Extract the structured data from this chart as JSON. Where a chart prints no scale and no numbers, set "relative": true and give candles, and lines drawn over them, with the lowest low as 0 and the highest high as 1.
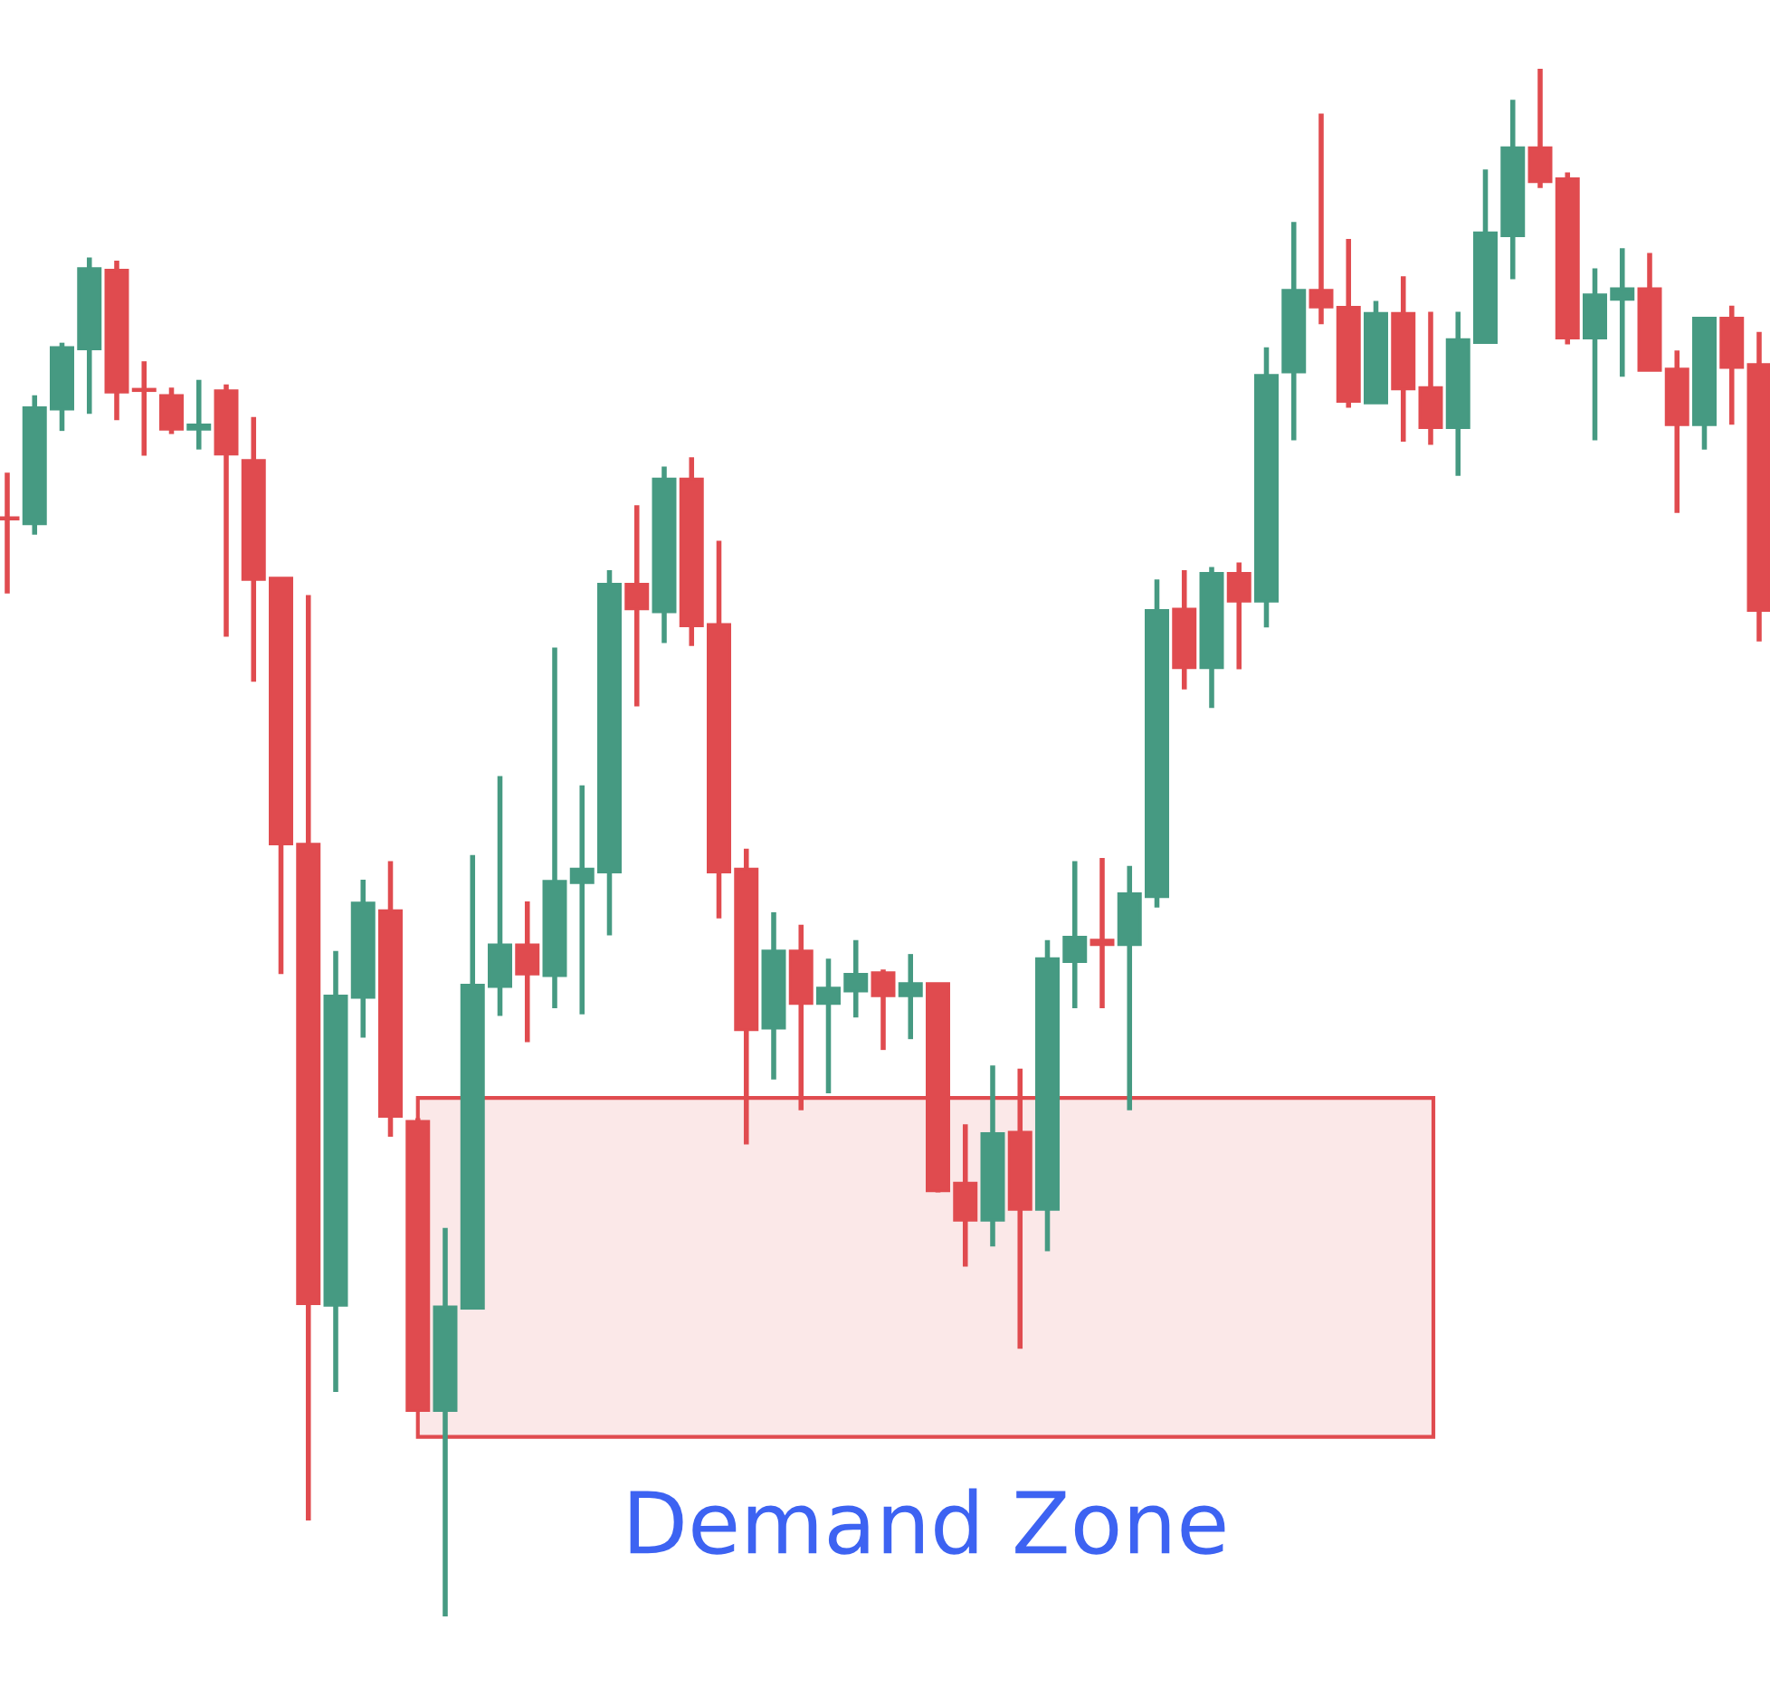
{
  "chart_data": {
    "type": "candlestick",
    "relative": true,
    "categories": [
      null,
      null,
      null,
      null,
      null,
      null,
      null,
      null,
      null,
      null,
      null,
      null,
      null,
      null,
      null,
      null,
      null,
      null,
      null,
      null,
      null,
      null,
      null,
      null,
      null,
      null,
      null,
      null,
      null,
      null,
      null,
      null,
      null,
      null,
      null,
      null,
      null,
      null,
      null,
      null,
      null,
      null,
      null,
      null,
      null,
      null,
      null,
      null,
      null,
      null,
      null,
      null,
      null,
      null,
      null,
      null,
      null,
      null,
      null,
      null,
      null,
      null,
      null,
      null,
      null
    ],
    "ohlc": [
      [
        0.71,
        0.739,
        0.661,
        0.709
      ],
      [
        0.706,
        0.789,
        0.699,
        0.781
      ],
      [
        0.78,
        0.823,
        0.766,
        0.82
      ],
      [
        0.819,
        0.878,
        0.777,
        0.871
      ],
      [
        0.87,
        0.876,
        0.773,
        0.791
      ],
      [
        0.793,
        0.811,
        0.75,
        0.792
      ],
      [
        0.789,
        0.794,
        0.764,
        0.767
      ],
      [
        0.767,
        0.799,
        0.754,
        0.77
      ],
      [
        0.792,
        0.796,
        0.633,
        0.751
      ],
      [
        0.747,
        0.775,
        0.604,
        0.67
      ],
      [
        0.671,
        0.671,
        0.415,
        0.499
      ],
      [
        0.499,
        0.66,
        0.062,
        0.202
      ],
      [
        0.201,
        0.43,
        0.145,
        0.401
      ],
      [
        0.4,
        0.476,
        0.374,
        0.461
      ],
      [
        0.456,
        0.488,
        0.31,
        0.323
      ],
      [
        0.32,
        0.322,
        0.133,
        0.133
      ],
      [
        0.133,
        0.251,
        0.0,
        0.2
      ],
      [
        0.199,
        0.492,
        0.199,
        0.408
      ],
      [
        0.407,
        0.543,
        0.388,
        0.434
      ],
      [
        0.434,
        0.462,
        0.371,
        0.415
      ],
      [
        0.414,
        0.626,
        0.393,
        0.475
      ],
      [
        0.474,
        0.537,
        0.389,
        0.483
      ],
      [
        0.481,
        0.676,
        0.44,
        0.667
      ],
      [
        0.667,
        0.718,
        0.588,
        0.651
      ],
      [
        0.649,
        0.743,
        0.629,
        0.735
      ],
      [
        0.735,
        0.749,
        0.627,
        0.64
      ],
      [
        0.641,
        0.695,
        0.451,
        0.481
      ],
      [
        0.483,
        0.496,
        0.305,
        0.379
      ],
      [
        0.38,
        0.455,
        0.347,
        0.43
      ],
      [
        0.43,
        0.447,
        0.327,
        0.396
      ],
      [
        0.396,
        0.425,
        0.338,
        0.406
      ],
      [
        0.404,
        0.437,
        0.387,
        0.415
      ],
      [
        0.416,
        0.418,
        0.366,
        0.401
      ],
      [
        0.401,
        0.428,
        0.373,
        0.409
      ],
      [
        0.409,
        0.409,
        0.274,
        0.275
      ],
      [
        0.28,
        0.318,
        0.226,
        0.256
      ],
      [
        0.256,
        0.356,
        0.239,
        0.312
      ],
      [
        0.313,
        0.354,
        0.173,
        0.263
      ],
      [
        0.263,
        0.437,
        0.236,
        0.425
      ],
      [
        0.423,
        0.488,
        0.393,
        0.439
      ],
      [
        0.437,
        0.49,
        0.393,
        0.434
      ],
      [
        0.434,
        0.485,
        0.327,
        0.467
      ],
      [
        0.465,
        0.67,
        0.458,
        0.65
      ],
      [
        0.651,
        0.676,
        0.599,
        0.613
      ],
      [
        0.613,
        0.678,
        0.587,
        0.674
      ],
      [
        0.674,
        0.681,
        0.612,
        0.656
      ],
      [
        0.656,
        0.82,
        0.639,
        0.802
      ],
      [
        0.804,
        0.901,
        0.76,
        0.857
      ],
      [
        0.857,
        0.971,
        0.835,
        0.846
      ],
      [
        0.846,
        0.89,
        0.781,
        0.785
      ],
      [
        0.784,
        0.85,
        0.784,
        0.842
      ],
      [
        0.842,
        0.866,
        0.759,
        0.793
      ],
      [
        0.794,
        0.843,
        0.757,
        0.768
      ],
      [
        0.768,
        0.843,
        0.737,
        0.825
      ],
      [
        0.823,
        0.935,
        0.823,
        0.894
      ],
      [
        0.892,
        0.98,
        0.864,
        0.949
      ],
      [
        0.949,
        1.0,
        0.923,
        0.927
      ],
      [
        0.929,
        0.933,
        0.822,
        0.826
      ],
      [
        0.826,
        0.871,
        0.76,
        0.854
      ],
      [
        0.851,
        0.884,
        0.801,
        0.858
      ],
      [
        0.858,
        0.881,
        0.805,
        0.805
      ],
      [
        0.806,
        0.818,
        0.713,
        0.77
      ],
      [
        0.77,
        0.839,
        0.754,
        0.839
      ],
      [
        0.839,
        0.847,
        0.77,
        0.807
      ],
      [
        0.809,
        0.83,
        0.63,
        0.65
      ]
    ],
    "colors": [
      "#e04b4f",
      "#469a82",
      "#469a82",
      "#469a82",
      "#e04b4f",
      "#e04b4f",
      "#e04b4f",
      "#469a82",
      "#e04b4f",
      "#e04b4f",
      "#e04b4f",
      "#e04b4f",
      "#469a82",
      "#469a82",
      "#e04b4f",
      "#e04b4f",
      "#469a82",
      "#469a82",
      "#469a82",
      "#e04b4f",
      "#469a82",
      "#469a82",
      "#469a82",
      "#e04b4f",
      "#469a82",
      "#e04b4f",
      "#e04b4f",
      "#e04b4f",
      "#469a82",
      "#e04b4f",
      "#469a82",
      "#469a82",
      "#e04b4f",
      "#469a82",
      "#e04b4f",
      "#e04b4f",
      "#469a82",
      "#e04b4f",
      "#469a82",
      "#469a82",
      "#e04b4f",
      "#469a82",
      "#469a82",
      "#e04b4f",
      "#469a82",
      "#e04b4f",
      "#469a82",
      "#469a82",
      "#e04b4f",
      "#e04b4f",
      "#469a82",
      "#e04b4f",
      "#e04b4f",
      "#469a82",
      "#469a82",
      "#469a82",
      "#e04b4f",
      "#e04b4f",
      "#469a82",
      "#469a82",
      "#e04b4f",
      "#e04b4f",
      "#469a82",
      "#e04b4f",
      "#e04b4f"
    ],
    "bands": [
      {
        "axis": "y",
        "from": 0.116,
        "to": 0.335,
        "label": "Demand Zone",
        "color": "#e04b4f"
      }
    ]
  }
}
